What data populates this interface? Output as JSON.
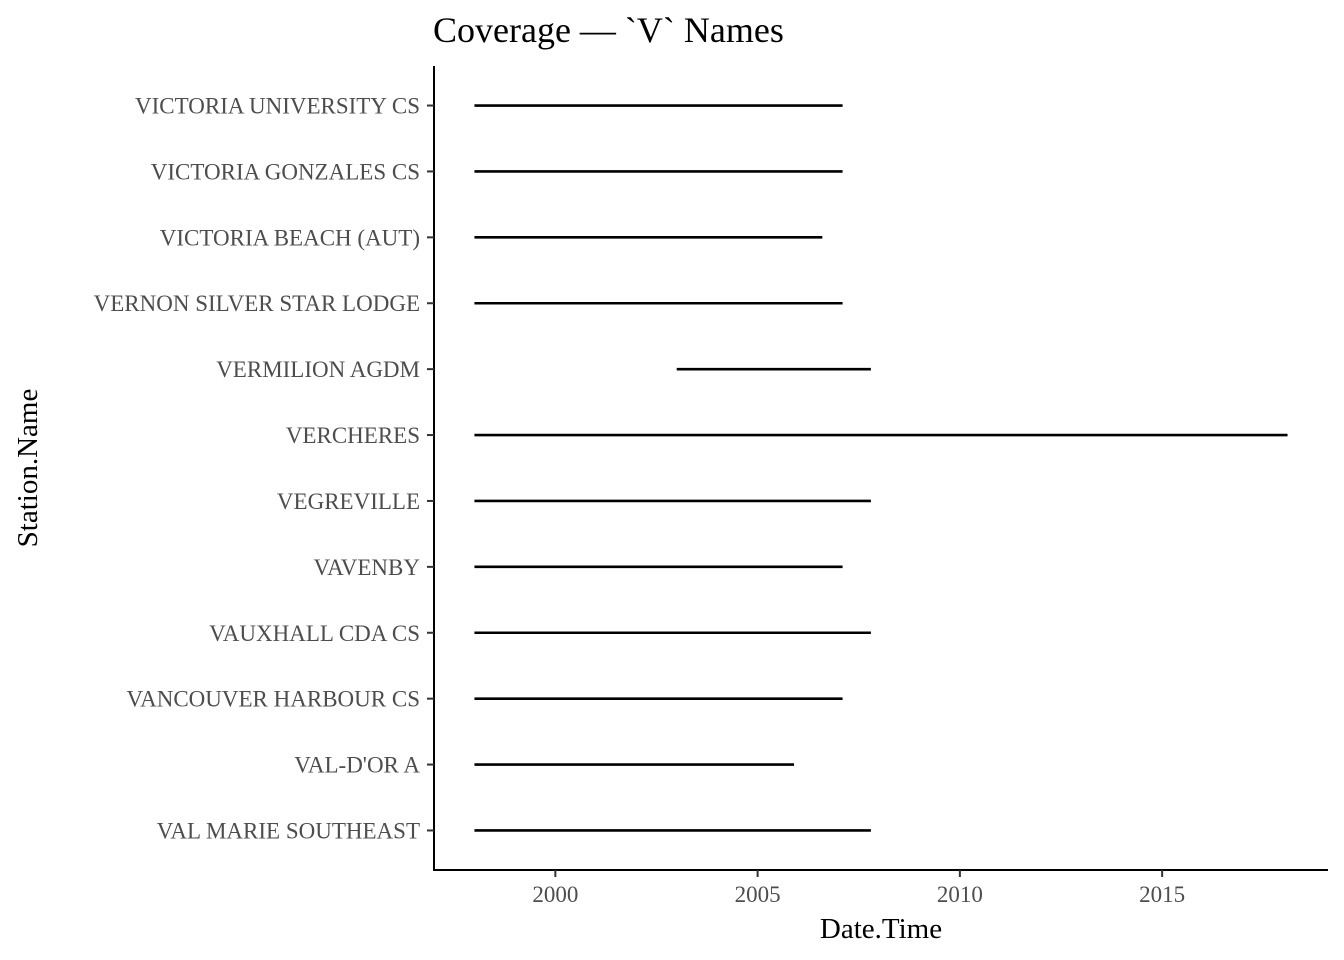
{
  "chart_data": {
    "type": "segment",
    "title": "Coverage — `V` Names",
    "xlabel": "Date.Time",
    "ylabel": "Station.Name",
    "xlim": [
      1997.0,
      2019.1
    ],
    "xticks": [
      2000,
      2005,
      2010,
      2015
    ],
    "categories": [
      "VAL MARIE SOUTHEAST",
      "VAL-D'OR A",
      "VANCOUVER HARBOUR CS",
      "VAUXHALL CDA CS",
      "VAVENBY",
      "VEGREVILLE",
      "VERCHERES",
      "VERMILION AGDM",
      "VERNON SILVER STAR LODGE",
      "VICTORIA BEACH (AUT)",
      "VICTORIA GONZALES CS",
      "VICTORIA UNIVERSITY CS"
    ],
    "segments": [
      {
        "station": "VAL MARIE SOUTHEAST",
        "start": 1998.0,
        "end": 2007.8
      },
      {
        "station": "VAL-D'OR A",
        "start": 1998.0,
        "end": 2005.9
      },
      {
        "station": "VANCOUVER HARBOUR CS",
        "start": 1998.0,
        "end": 2007.1
      },
      {
        "station": "VAUXHALL CDA CS",
        "start": 1998.0,
        "end": 2007.8
      },
      {
        "station": "VAVENBY",
        "start": 1998.0,
        "end": 2007.1
      },
      {
        "station": "VEGREVILLE",
        "start": 1998.0,
        "end": 2007.8
      },
      {
        "station": "VERCHERES",
        "start": 1998.0,
        "end": 2018.1
      },
      {
        "station": "VERMILION AGDM",
        "start": 2003.0,
        "end": 2007.8
      },
      {
        "station": "VERNON SILVER STAR LODGE",
        "start": 1998.0,
        "end": 2007.1
      },
      {
        "station": "VICTORIA BEACH (AUT)",
        "start": 1998.0,
        "end": 2006.6
      },
      {
        "station": "VICTORIA GONZALES CS",
        "start": 1998.0,
        "end": 2007.1
      },
      {
        "station": "VICTORIA UNIVERSITY CS",
        "start": 1998.0,
        "end": 2007.1
      }
    ],
    "grid": false,
    "line_color": "#000000"
  }
}
